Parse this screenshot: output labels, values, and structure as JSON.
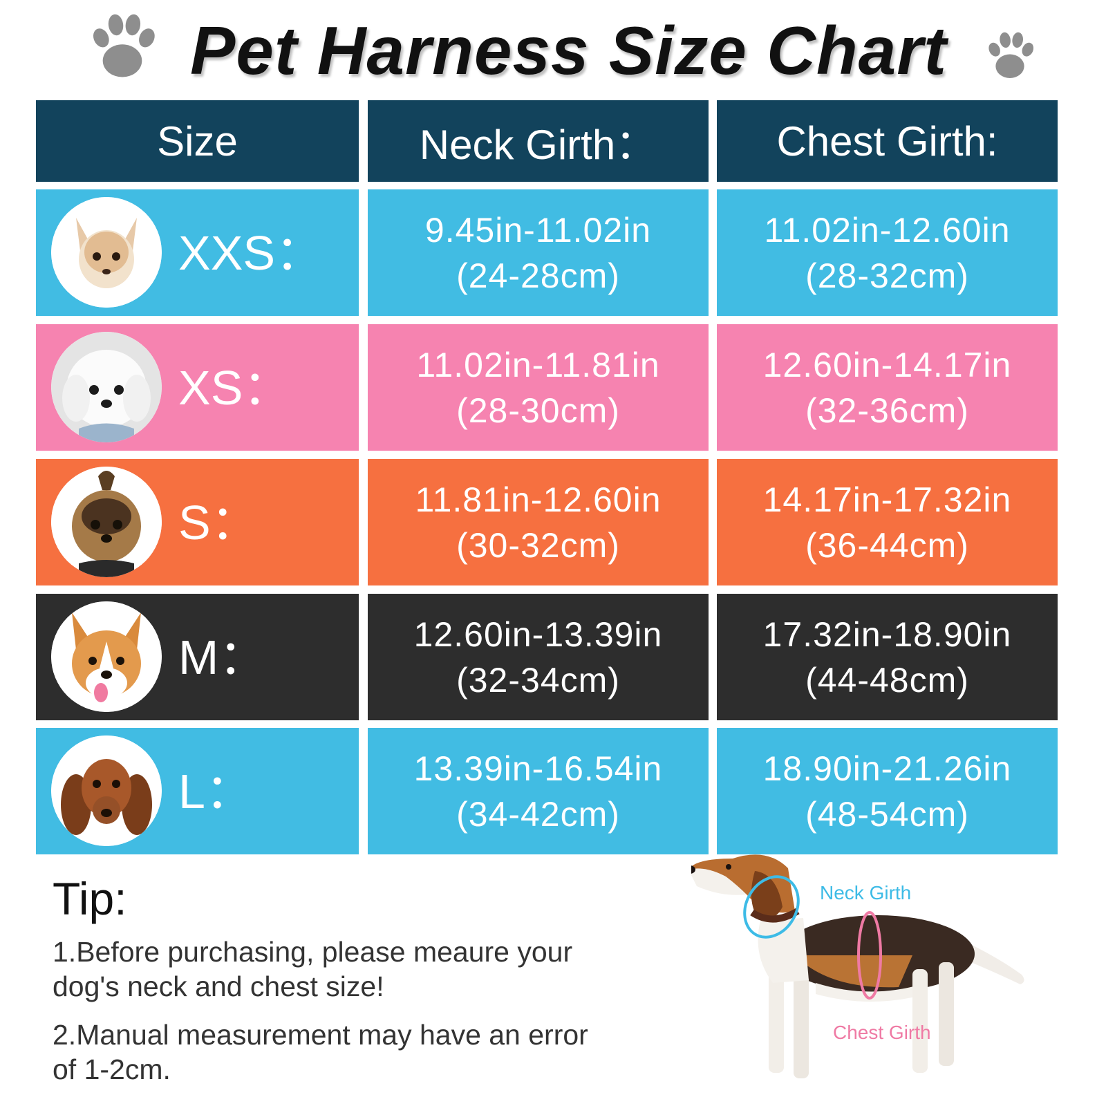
{
  "title": "Pet Harness Size Chart",
  "icons": {
    "paw": "paw-print-icon"
  },
  "colors": {
    "header": "#12435c",
    "blue_row": "#41bce3",
    "pink_row": "#f683b0",
    "orange_row": "#f67040",
    "dark_row": "#2d2d2d",
    "neck_label": "#3dbbe6",
    "chest_label": "#ef7aa4"
  },
  "table": {
    "headers": [
      "Size",
      "Neck Girth：",
      "Chest Girth:"
    ],
    "rows": [
      {
        "size": "XXS：",
        "neck": [
          "9.45in-11.02in",
          "(24-28cm)"
        ],
        "chest": [
          "11.02in-12.60in",
          "(28-32cm)"
        ],
        "color": "#41bce3",
        "dog": "chihuahua-photo"
      },
      {
        "size": "XS：",
        "neck": [
          "11.02in-11.81in",
          "(28-30cm)"
        ],
        "chest": [
          "12.60in-14.17in",
          "(32-36cm)"
        ],
        "color": "#f683b0",
        "dog": "maltese-photo"
      },
      {
        "size": "S：",
        "neck": [
          "11.81in-12.60in",
          "(30-32cm)"
        ],
        "chest": [
          "14.17in-17.32in",
          "(36-44cm)"
        ],
        "color": "#f67040",
        "dog": "yorkshire-terrier-photo"
      },
      {
        "size": "M：",
        "neck": [
          "12.60in-13.39in",
          "(32-34cm)"
        ],
        "chest": [
          "17.32in-18.90in",
          "(44-48cm)"
        ],
        "color": "#2d2d2d",
        "dog": "corgi-photo"
      },
      {
        "size": "L：",
        "neck": [
          "13.39in-16.54in",
          "(34-42cm)"
        ],
        "chest": [
          "18.90in-21.26in",
          "(48-54cm)"
        ],
        "color": "#41bce3",
        "dog": "dachshund-photo"
      }
    ]
  },
  "tip": {
    "title": "Tip:",
    "line1": "1.Before purchasing, please meaure your dog's neck and chest size!",
    "line2": "2.Manual measurement may have an error of 1-2cm."
  },
  "measure_labels": {
    "neck": "Neck Girth",
    "chest": "Chest Girth"
  }
}
